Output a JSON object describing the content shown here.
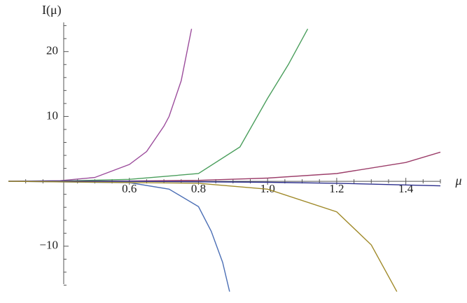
{
  "chart_data": {
    "type": "line",
    "ylabel": "I(μ)",
    "xlabel": "μ",
    "xlim": [
      0.25,
      1.5
    ],
    "ylim": [
      -18,
      24.5
    ],
    "yaxis_at": 0.41,
    "xticks": [
      0.6,
      0.8,
      {
        "value": 1.0,
        "label": "1.0"
      },
      1.2,
      1.4
    ],
    "yticks": [
      {
        "value": -10,
        "label": "−10"
      },
      10,
      20
    ],
    "xminorticks": [
      0.3,
      0.35,
      0.45,
      0.5,
      0.55,
      0.65,
      0.7,
      0.75,
      0.85,
      0.9,
      0.95,
      1.05,
      1.1,
      1.15,
      1.25,
      1.3,
      1.35,
      1.45,
      1.5
    ],
    "yminorticks": [
      -16,
      -14,
      -12,
      -8,
      -6,
      -4,
      -2,
      2,
      4,
      6,
      8,
      12,
      14,
      16,
      18,
      22,
      24
    ],
    "series": [
      {
        "color": "#9c4d9c",
        "x": [
          0.25,
          0.4,
          0.5,
          0.6,
          0.65,
          0.7,
          0.715,
          0.75,
          0.78
        ],
        "values": [
          0,
          0.1,
          0.6,
          2.6,
          4.6,
          8.5,
          10,
          15.5,
          23.5
        ]
      },
      {
        "color": "#4a9e5c",
        "x": [
          0.25,
          0.4,
          0.6,
          0.8,
          0.92,
          1.0,
          1.06,
          1.116
        ],
        "values": [
          0,
          0.05,
          0.3,
          1.2,
          5.3,
          12.8,
          18,
          23.5
        ]
      },
      {
        "color": "#9c3e6a",
        "x": [
          0.25,
          0.6,
          0.8,
          1.0,
          1.2,
          1.4,
          1.5
        ],
        "values": [
          0,
          0.05,
          0.15,
          0.5,
          1.2,
          2.9,
          4.5
        ]
      },
      {
        "color": "#2b2e8c",
        "x": [
          0.25,
          0.6,
          1.0,
          1.2,
          1.5
        ],
        "values": [
          0,
          0,
          -0.15,
          -0.3,
          -0.7
        ]
      },
      {
        "color": "#4c6fb5",
        "x": [
          0.25,
          0.6,
          0.715,
          0.8,
          0.837,
          0.87,
          0.89
        ],
        "values": [
          0,
          -0.2,
          -1.2,
          -3.9,
          -7.7,
          -12.5,
          -17
        ]
      },
      {
        "color": "#a08a2a",
        "x": [
          0.25,
          0.8,
          1.0,
          1.2,
          1.3,
          1.374
        ],
        "values": [
          0,
          -0.3,
          -1.2,
          -4.7,
          -9.8,
          -17
        ]
      }
    ]
  }
}
